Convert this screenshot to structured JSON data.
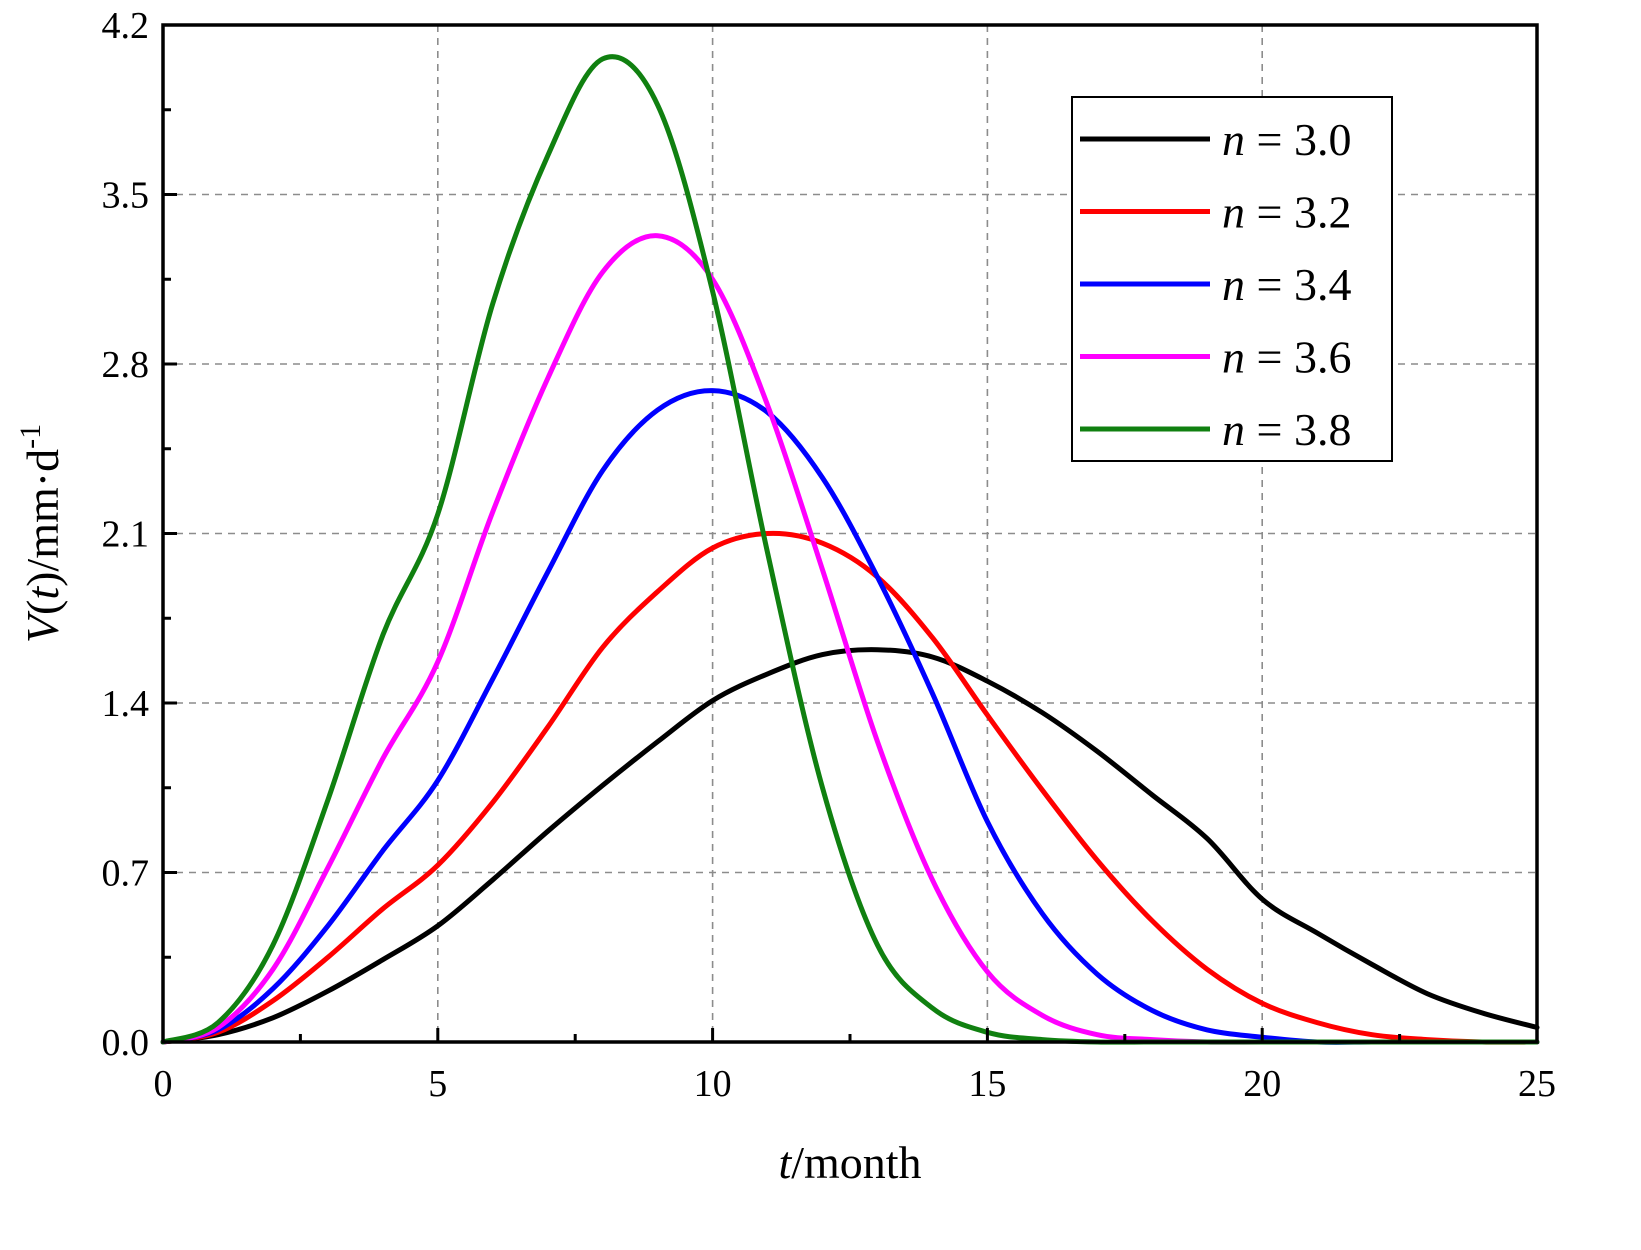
{
  "chart_data": {
    "type": "line",
    "title": "",
    "xlabel": {
      "italic": "t",
      "rest": "/month"
    },
    "ylabel": {
      "italic_v": "V",
      "open": "(",
      "italic_t": "t",
      "close": ")",
      "unit": "/mm·d",
      "sup": "-1"
    },
    "xlim": [
      0,
      25
    ],
    "ylim": [
      0,
      4.2
    ],
    "x_ticks": [
      0,
      5,
      10,
      15,
      20,
      25
    ],
    "x_tick_labels": [
      "0",
      "5",
      "10",
      "15",
      "20",
      "25"
    ],
    "y_ticks": [
      0,
      0.7,
      1.4,
      2.1,
      2.8,
      3.5,
      4.2
    ],
    "y_tick_labels": [
      "0.0",
      "0.7",
      "1.4",
      "2.1",
      "2.8",
      "3.5",
      "4.2"
    ],
    "grid": true,
    "legend_position": "top-right",
    "x": [
      0,
      1,
      2,
      3,
      4,
      5,
      6,
      7,
      8,
      9,
      10,
      11,
      12,
      13,
      14,
      15,
      16,
      17,
      18,
      19,
      20,
      21,
      22,
      23,
      24,
      25
    ],
    "series": [
      {
        "name": "n = 3.0",
        "color": "#000000",
        "label_n": "n",
        "label_rest": " = 3.0",
        "values": [
          0,
          0.03,
          0.1,
          0.21,
          0.34,
          0.48,
          0.67,
          0.87,
          1.06,
          1.24,
          1.41,
          1.52,
          1.6,
          1.62,
          1.59,
          1.49,
          1.36,
          1.2,
          1.02,
          0.84,
          0.59,
          0.45,
          0.32,
          0.2,
          0.12,
          0.06
        ]
      },
      {
        "name": "n = 3.2",
        "color": "#ff0000",
        "label_n": "n",
        "label_rest": " = 3.2",
        "values": [
          0,
          0.04,
          0.17,
          0.35,
          0.55,
          0.73,
          0.99,
          1.3,
          1.63,
          1.86,
          2.04,
          2.1,
          2.06,
          1.92,
          1.67,
          1.35,
          1.04,
          0.75,
          0.5,
          0.3,
          0.16,
          0.08,
          0.03,
          0.01,
          0,
          0
        ]
      },
      {
        "name": "n = 3.4",
        "color": "#0000ff",
        "label_n": "n",
        "label_rest": " = 3.4",
        "values": [
          0,
          0.05,
          0.22,
          0.48,
          0.79,
          1.08,
          1.5,
          1.94,
          2.36,
          2.61,
          2.69,
          2.6,
          2.33,
          1.92,
          1.44,
          0.91,
          0.53,
          0.28,
          0.13,
          0.05,
          0.02,
          0,
          0,
          0,
          0,
          0
        ]
      },
      {
        "name": "n = 3.6",
        "color": "#ff00ff",
        "label_n": "n",
        "label_rest": " = 3.6",
        "values": [
          0,
          0.06,
          0.3,
          0.72,
          1.17,
          1.57,
          2.19,
          2.74,
          3.18,
          3.33,
          3.15,
          2.63,
          1.95,
          1.24,
          0.67,
          0.29,
          0.11,
          0.03,
          0.01,
          0,
          0,
          0,
          0,
          0,
          0,
          0
        ]
      },
      {
        "name": "n = 3.8",
        "color": "#108010",
        "label_n": "n",
        "label_rest": " = 3.8",
        "values": [
          0,
          0.08,
          0.4,
          1.0,
          1.68,
          2.18,
          3.05,
          3.66,
          4.06,
          3.87,
          3.1,
          2.02,
          1.05,
          0.4,
          0.14,
          0.04,
          0.01,
          0,
          0,
          0,
          0,
          0,
          0,
          0,
          0,
          0
        ]
      }
    ]
  }
}
